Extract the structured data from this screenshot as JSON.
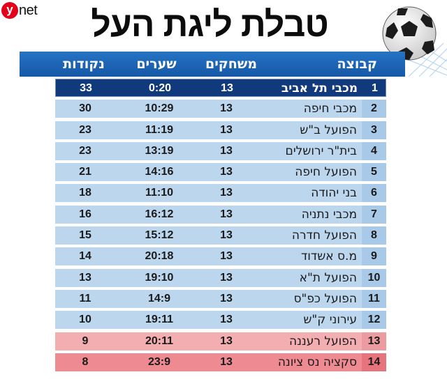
{
  "logo": {
    "y": "y",
    "net": "net"
  },
  "title": "טבלת ליגת העל",
  "header": {
    "team": "קבוצה",
    "games": "משחקים",
    "goals": "שערים",
    "points": "נקודות"
  },
  "rows": [
    {
      "rank": "1",
      "team": "מכבי תל אביב",
      "games": "13",
      "goals": "0:20",
      "points": "33"
    },
    {
      "rank": "2",
      "team": "מכבי חיפה",
      "games": "13",
      "goals": "10:29",
      "points": "30"
    },
    {
      "rank": "3",
      "team": "הפועל ב\"ש",
      "games": "13",
      "goals": "11:19",
      "points": "23"
    },
    {
      "rank": "4",
      "team": "בית\"ר ירושלים",
      "games": "13",
      "goals": "13:19",
      "points": "23"
    },
    {
      "rank": "5",
      "team": "הפועל חיפה",
      "games": "13",
      "goals": "14:16",
      "points": "21"
    },
    {
      "rank": "6",
      "team": "בני יהודה",
      "games": "13",
      "goals": "11:10",
      "points": "18"
    },
    {
      "rank": "7",
      "team": "מכבי נתניה",
      "games": "13",
      "goals": "16:12",
      "points": "16"
    },
    {
      "rank": "8",
      "team": "הפועל חדרה",
      "games": "13",
      "goals": "15:12",
      "points": "15"
    },
    {
      "rank": "9",
      "team": "מ.ס אשדוד",
      "games": "13",
      "goals": "20:18",
      "points": "14"
    },
    {
      "rank": "10",
      "team": "הפועל ת\"א",
      "games": "13",
      "goals": "19:10",
      "points": "13"
    },
    {
      "rank": "11",
      "team": "הפועל כפ\"ס",
      "games": "13",
      "goals": "14:9",
      "points": "11"
    },
    {
      "rank": "12",
      "team": "עירוני ק\"ש",
      "games": "13",
      "goals": "19:11",
      "points": "10"
    },
    {
      "rank": "13",
      "team": "הפועל רעננה",
      "games": "13",
      "goals": "20:11",
      "points": "9"
    },
    {
      "rank": "14",
      "team": "סקציה נס ציונה",
      "games": "13",
      "goals": "23:9",
      "points": "8"
    }
  ],
  "colors": {
    "header": "#1a64b4",
    "leader": "#113a7c",
    "row": "#bcd6ee",
    "relegation_13": "#f3aeb2",
    "relegation_14": "#ee8a92"
  },
  "icons": {
    "ball": "soccer-ball-icon"
  }
}
